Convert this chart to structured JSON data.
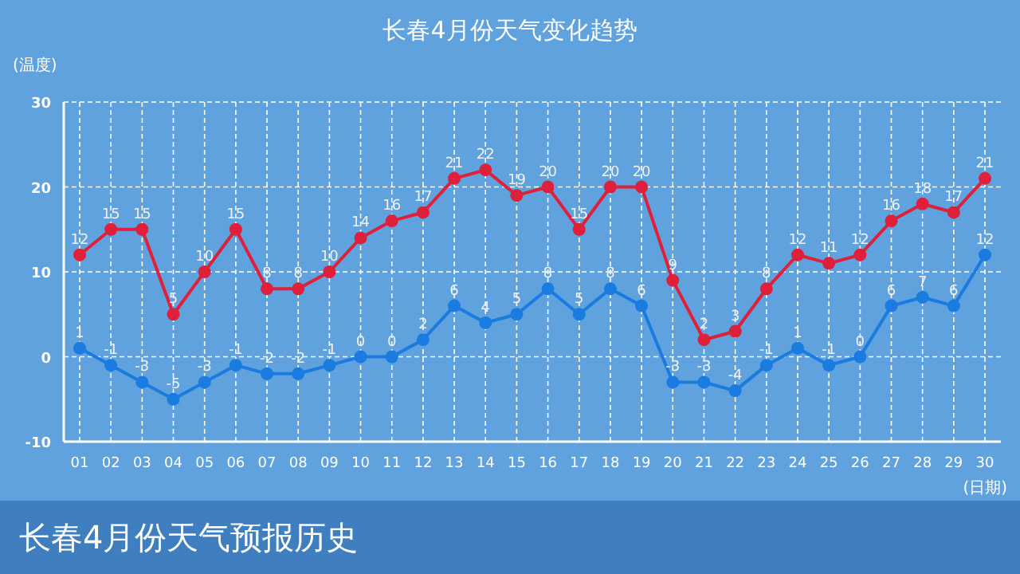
{
  "chart_data": {
    "type": "line",
    "title": "长春4月份天气变化趋势",
    "ylabel": "(温度)",
    "xlabel": "(日期)",
    "annotations": [
      "长春4月份天气预报历史"
    ],
    "categories": [
      "01",
      "02",
      "03",
      "04",
      "05",
      "06",
      "07",
      "08",
      "09",
      "10",
      "11",
      "12",
      "13",
      "14",
      "15",
      "16",
      "17",
      "18",
      "19",
      "20",
      "21",
      "22",
      "23",
      "24",
      "25",
      "26",
      "27",
      "28",
      "29",
      "30"
    ],
    "series": [
      {
        "color": "#e0203a",
        "values": [
          12,
          15,
          15,
          5,
          10,
          15,
          8,
          8,
          10,
          14,
          16,
          17,
          21,
          22,
          19,
          20,
          15,
          20,
          20,
          9,
          2,
          3,
          8,
          12,
          11,
          12,
          16,
          18,
          17,
          21
        ]
      },
      {
        "color": "#1a7be0",
        "values": [
          1,
          -1,
          -3,
          -5,
          -3,
          -1,
          -2,
          -2,
          -1,
          0,
          0,
          2,
          6,
          4,
          5,
          8,
          5,
          8,
          6,
          -3,
          -3,
          -4,
          -1,
          1,
          -1,
          0,
          6,
          7,
          6,
          12
        ]
      }
    ],
    "ylim": [
      -10,
      30
    ],
    "yticks": [
      -10,
      0,
      10,
      20,
      30
    ],
    "grid": true,
    "data_labels": true,
    "marker": "circle",
    "line_style": "solid"
  }
}
